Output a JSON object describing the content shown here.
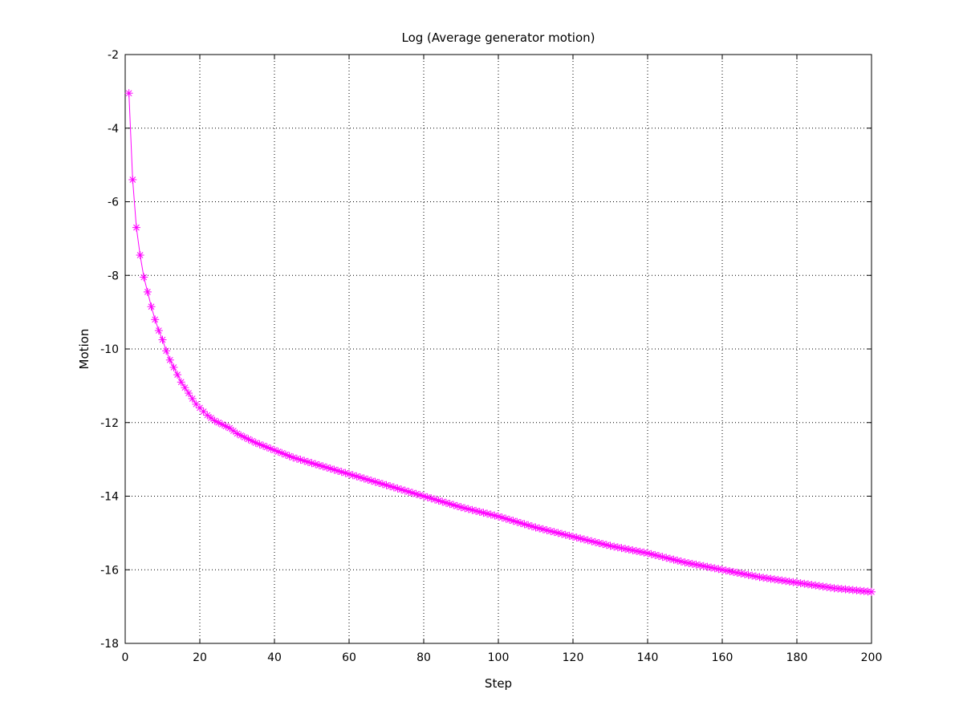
{
  "chart_data": {
    "type": "line",
    "title": "Log (Average generator motion)",
    "xlabel": "Step",
    "ylabel": "Motion",
    "xlim": [
      0,
      200
    ],
    "ylim": [
      -18,
      -2
    ],
    "xticks": [
      0,
      20,
      40,
      60,
      80,
      100,
      120,
      140,
      160,
      180,
      200
    ],
    "yticks": [
      -18,
      -16,
      -14,
      -12,
      -10,
      -8,
      -6,
      -4,
      -2
    ],
    "grid": true,
    "line_color": "#ff00ff",
    "marker": "asterisk",
    "series": [
      {
        "x": [
          1,
          2,
          3,
          4,
          5,
          6,
          7,
          8,
          9,
          10,
          11,
          12,
          13,
          14,
          15,
          16,
          17,
          18,
          19,
          20,
          22,
          24,
          26,
          28,
          30,
          35,
          40,
          45,
          50,
          60,
          70,
          80,
          90,
          100,
          110,
          120,
          130,
          140,
          150,
          160,
          170,
          180,
          190,
          200
        ],
        "y": [
          -3.05,
          -5.4,
          -6.7,
          -7.45,
          -8.05,
          -8.45,
          -8.85,
          -9.2,
          -9.5,
          -9.75,
          -10.05,
          -10.3,
          -10.5,
          -10.7,
          -10.9,
          -11.05,
          -11.2,
          -11.35,
          -11.5,
          -11.6,
          -11.8,
          -11.95,
          -12.05,
          -12.15,
          -12.3,
          -12.55,
          -12.75,
          -12.95,
          -13.1,
          -13.4,
          -13.7,
          -14.0,
          -14.3,
          -14.55,
          -14.85,
          -15.1,
          -15.35,
          -15.55,
          -15.8,
          -16.0,
          -16.2,
          -16.35,
          -16.5,
          -16.6
        ]
      }
    ]
  }
}
